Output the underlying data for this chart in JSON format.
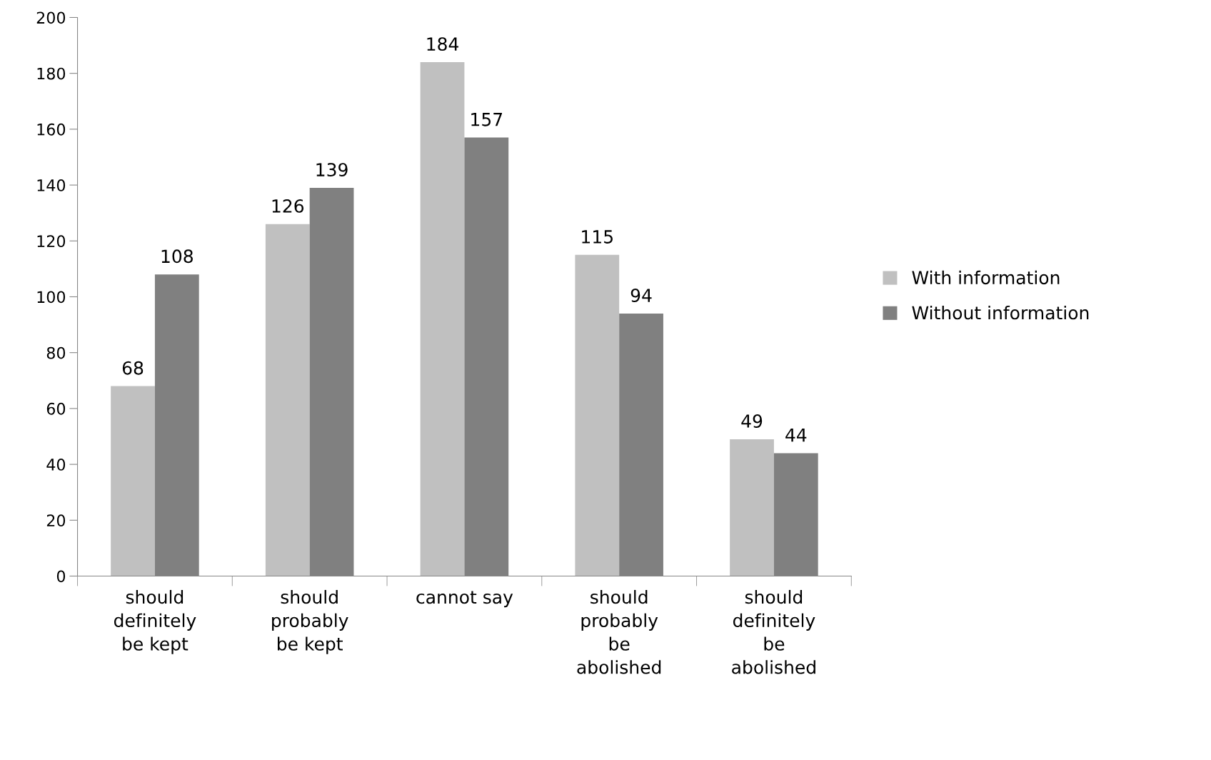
{
  "chart_data": {
    "type": "bar",
    "categories": [
      "should\ndefinitely\nbe kept",
      "should\nprobably\nbe kept",
      "cannot say",
      "should\nprobably\nbe\nabolished",
      "should\ndefinitely\nbe\nabolished"
    ],
    "series": [
      {
        "name": "With information",
        "color": "#c0c0c0",
        "values": [
          68,
          126,
          184,
          115,
          49
        ]
      },
      {
        "name": "Without information",
        "color": "#808080",
        "values": [
          108,
          139,
          157,
          94,
          44
        ]
      }
    ],
    "ylim": [
      0,
      200
    ],
    "yticks": [
      0,
      20,
      40,
      60,
      80,
      100,
      120,
      140,
      160,
      180,
      200
    ],
    "grid": false,
    "legend": "right",
    "data_labels": true
  }
}
